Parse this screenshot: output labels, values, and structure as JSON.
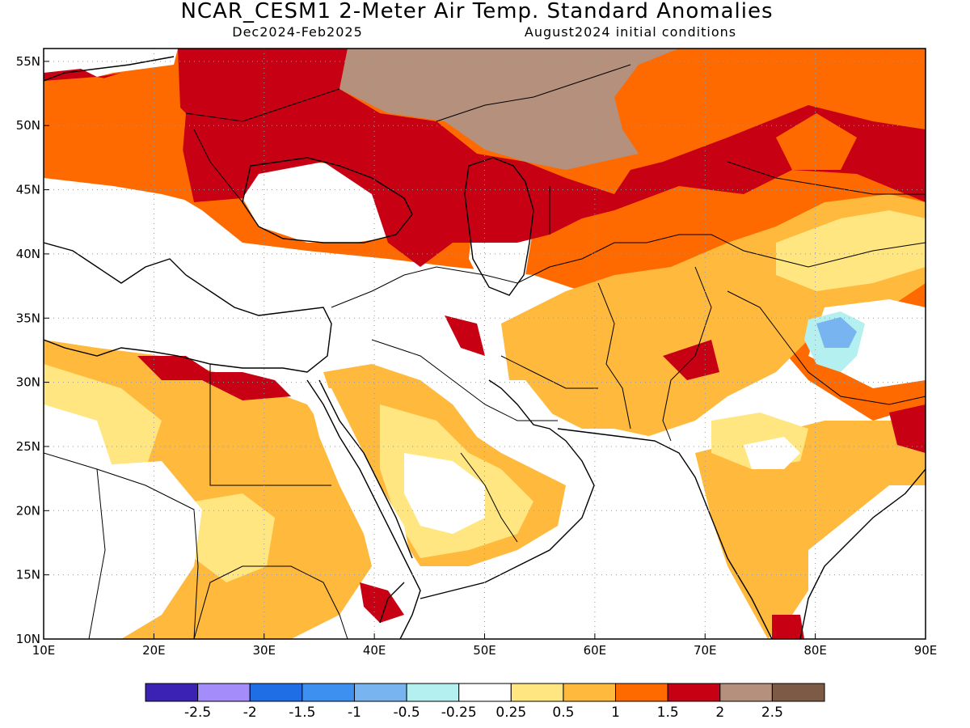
{
  "header": {
    "title": "NCAR_CESM1 2-Meter Air Temp. Standard Anomalies",
    "season": "Dec2024-Feb2025",
    "init": "August2024 initial conditions"
  },
  "map": {
    "lon_range": [
      10,
      90
    ],
    "lat_range": [
      10,
      56
    ],
    "lon_ticks": [
      {
        "v": 10,
        "label": "10E"
      },
      {
        "v": 20,
        "label": "20E"
      },
      {
        "v": 30,
        "label": "30E"
      },
      {
        "v": 40,
        "label": "40E"
      },
      {
        "v": 50,
        "label": "50E"
      },
      {
        "v": 60,
        "label": "60E"
      },
      {
        "v": 70,
        "label": "70E"
      },
      {
        "v": 80,
        "label": "80E"
      },
      {
        "v": 90,
        "label": "90E"
      }
    ],
    "lat_ticks": [
      {
        "v": 10,
        "label": "10N"
      },
      {
        "v": 15,
        "label": "15N"
      },
      {
        "v": 20,
        "label": "20N"
      },
      {
        "v": 25,
        "label": "25N"
      },
      {
        "v": 30,
        "label": "30N"
      },
      {
        "v": 35,
        "label": "35N"
      },
      {
        "v": 40,
        "label": "40N"
      },
      {
        "v": 45,
        "label": "45N"
      },
      {
        "v": 50,
        "label": "50N"
      },
      {
        "v": 55,
        "label": "55N"
      }
    ],
    "gridlines": "dotted"
  },
  "legend": {
    "colors": [
      "#3b22b4",
      "#a48cfa",
      "#1f6ee6",
      "#3d8ff0",
      "#78b4f0",
      "#b4f0f0",
      "#ffffff",
      "#ffe680",
      "#ffb93c",
      "#ff6a00",
      "#c80014",
      "#b4907d",
      "#7d5a46"
    ],
    "labels": [
      "-2.5",
      "-2",
      "-1.5",
      "-1",
      "-0.5",
      "-0.25",
      "0.25",
      "0.5",
      "1",
      "1.5",
      "2",
      "2.5"
    ]
  }
}
